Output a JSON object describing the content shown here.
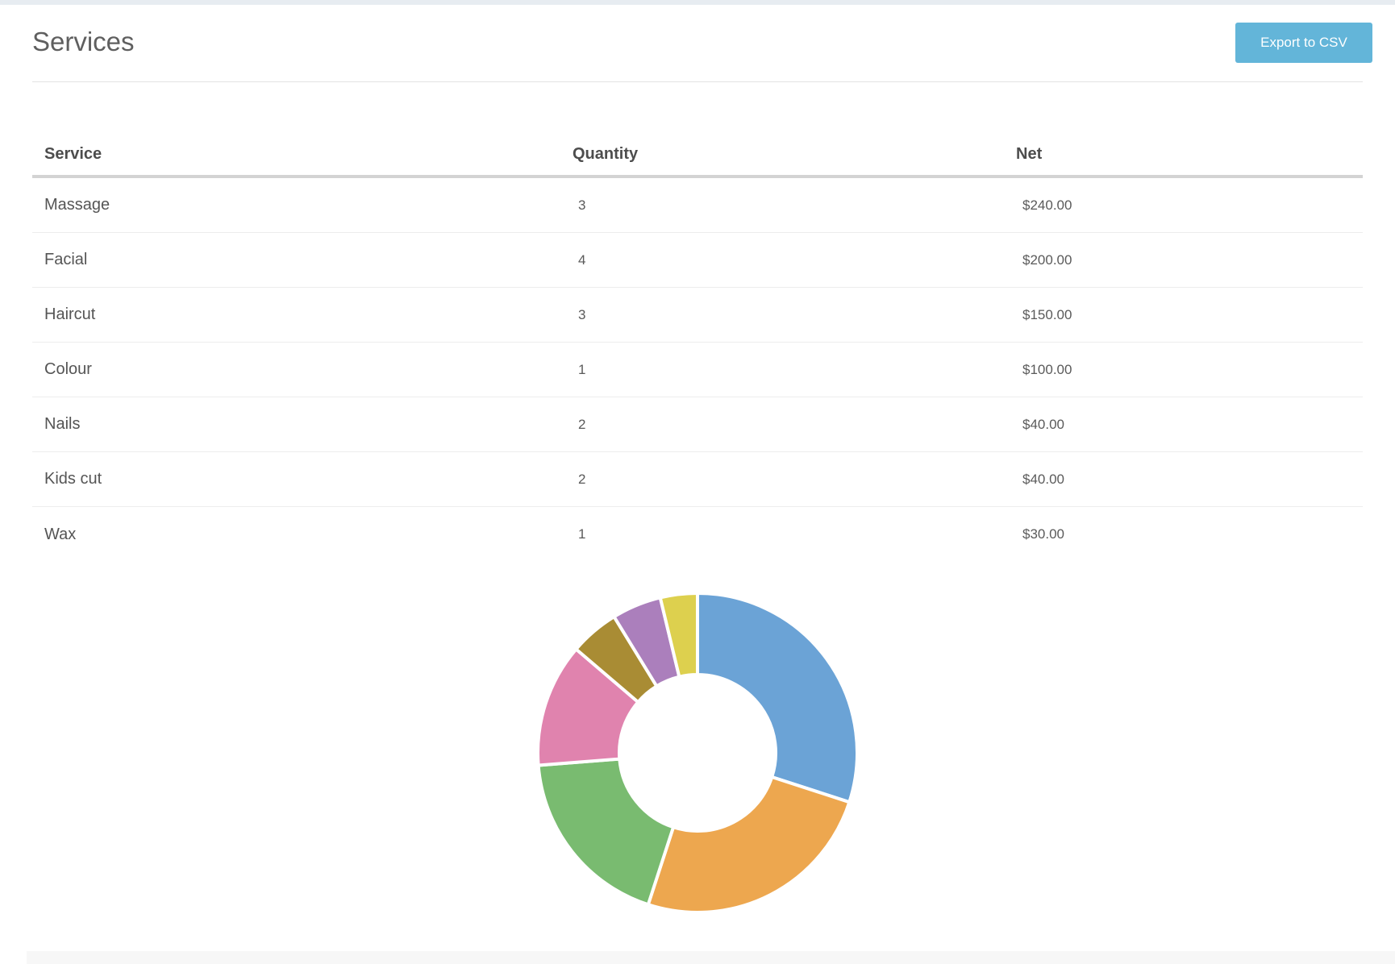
{
  "page": {
    "title": "Services"
  },
  "toolbar": {
    "export_label": "Export to CSV"
  },
  "table": {
    "columns": [
      "Service",
      "Quantity",
      "Net"
    ],
    "rows": [
      {
        "service": "Massage",
        "quantity": "3",
        "net": "$240.00"
      },
      {
        "service": "Facial",
        "quantity": "4",
        "net": "$200.00"
      },
      {
        "service": "Haircut",
        "quantity": "3",
        "net": "$150.00"
      },
      {
        "service": "Colour",
        "quantity": "1",
        "net": "$100.00"
      },
      {
        "service": "Nails",
        "quantity": "2",
        "net": "$40.00"
      },
      {
        "service": "Kids cut",
        "quantity": "2",
        "net": "$40.00"
      },
      {
        "service": "Wax",
        "quantity": "1",
        "net": "$30.00"
      }
    ]
  },
  "chart_data": {
    "type": "pie",
    "subtype": "donut",
    "title": "",
    "categories": [
      "Massage",
      "Facial",
      "Haircut",
      "Colour",
      "Nails",
      "Kids cut",
      "Wax"
    ],
    "values": [
      240,
      200,
      150,
      100,
      40,
      40,
      30
    ],
    "total": 800,
    "percentages": [
      30,
      25,
      18.75,
      12.5,
      5,
      5,
      3.75
    ],
    "colors": [
      "#6ba3d6",
      "#eda74f",
      "#79bb70",
      "#e083ae",
      "#a98c34",
      "#ab7fbc",
      "#ddd04e"
    ],
    "legend": "none",
    "data_labels": "none",
    "start_angle_deg": 0,
    "direction": "clockwise",
    "inner_radius_ratio": 0.5
  },
  "theme": {
    "accent_blue": "#63b5d9",
    "top_strip": "#e7ecf1",
    "header_rule": "#e3e3e3",
    "table_header_rule": "#d3d3d3",
    "row_divider": "#ededed",
    "text_primary": "#555555",
    "text_title": "#5f5f5f",
    "bottom_strip": "#f7f7f7"
  }
}
